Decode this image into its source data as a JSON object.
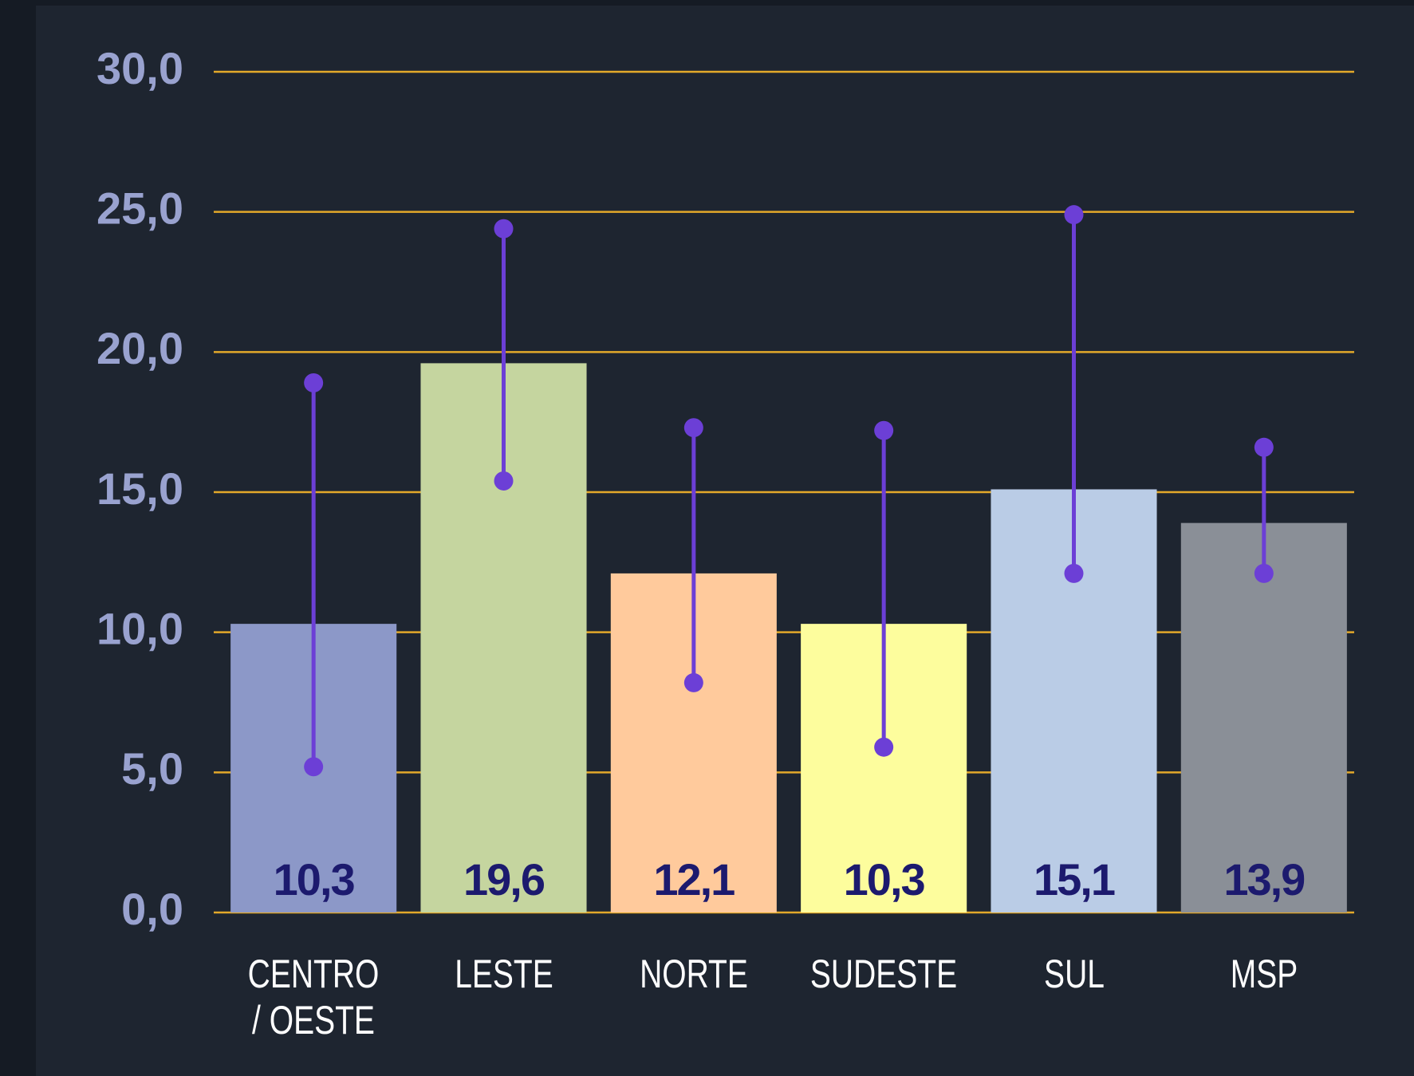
{
  "chart_data": {
    "type": "bar",
    "categories": [
      "CENTRO\n/ OESTE",
      "LESTE",
      "NORTE",
      "SUDESTE",
      "SUL",
      "MSP"
    ],
    "values": [
      10.3,
      19.6,
      12.1,
      10.3,
      15.1,
      13.9
    ],
    "value_labels": [
      "10,3",
      "19,6",
      "12,1",
      "10,3",
      "15,1",
      "13,9"
    ],
    "colors": [
      "#8c98c8",
      "#c5d59f",
      "#ffca9c",
      "#fdfd9d",
      "#bacce6",
      "#8a8f97"
    ],
    "error_low": [
      5.2,
      15.4,
      8.2,
      5.9,
      12.1,
      12.1
    ],
    "error_high": [
      18.9,
      24.4,
      17.3,
      17.2,
      24.9,
      16.6
    ],
    "error_color": "#6c3fd6",
    "ylim": [
      0,
      30
    ],
    "yticks": [
      {
        "value": 0,
        "label": "0,0"
      },
      {
        "value": 5,
        "label": "5,0"
      },
      {
        "value": 10,
        "label": "10,0"
      },
      {
        "value": 15,
        "label": "15,0"
      },
      {
        "value": 20,
        "label": "20,0"
      },
      {
        "value": 25,
        "label": "25,0"
      },
      {
        "value": 30,
        "label": "30,0"
      }
    ],
    "grid": true,
    "grid_color": "#e3a92a"
  }
}
